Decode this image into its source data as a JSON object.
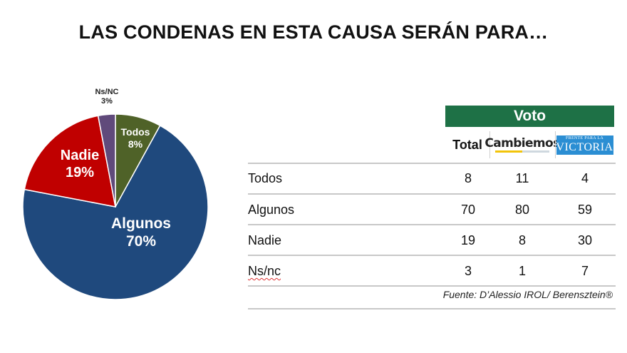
{
  "title": "LAS CONDENAS EN ESTA CAUSA SERÁN PARA…",
  "chart_data": {
    "type": "pie",
    "title": "",
    "slices": [
      {
        "label": "Todos",
        "value": 8,
        "pct_text": "8%",
        "color": "#4f6228"
      },
      {
        "label": "Algunos",
        "value": 70,
        "pct_text": "70%",
        "color": "#1f497d"
      },
      {
        "label": "Nadie",
        "value": 19,
        "pct_text": "19%",
        "color": "#c00000"
      },
      {
        "label": "Ns/NC",
        "value": 3,
        "pct_text": "3%",
        "color": "#604a7b"
      }
    ]
  },
  "table": {
    "group_header": "Voto",
    "columns": {
      "total": "Total",
      "cambiemos": "Cambiemos",
      "victoria_small": "FRENTE PARA LA",
      "victoria_big": "VICTORIA"
    },
    "rows": [
      {
        "label": "Todos",
        "total": "8",
        "cambiemos": "11",
        "victoria": "4"
      },
      {
        "label": "Algunos",
        "total": "70",
        "cambiemos": "80",
        "victoria": "59"
      },
      {
        "label": "Nadie",
        "total": "19",
        "cambiemos": "8",
        "victoria": "30"
      },
      {
        "label": "Ns/nc",
        "total": "3",
        "cambiemos": "1",
        "victoria": "7"
      }
    ]
  },
  "source": "Fuente: D’Alessio IROL/ Berensztein®",
  "colors": {
    "header_green": "#1e7146",
    "victoria_blue": "#2b8ed3",
    "cambiemos_yellow": "#f2c40b"
  }
}
